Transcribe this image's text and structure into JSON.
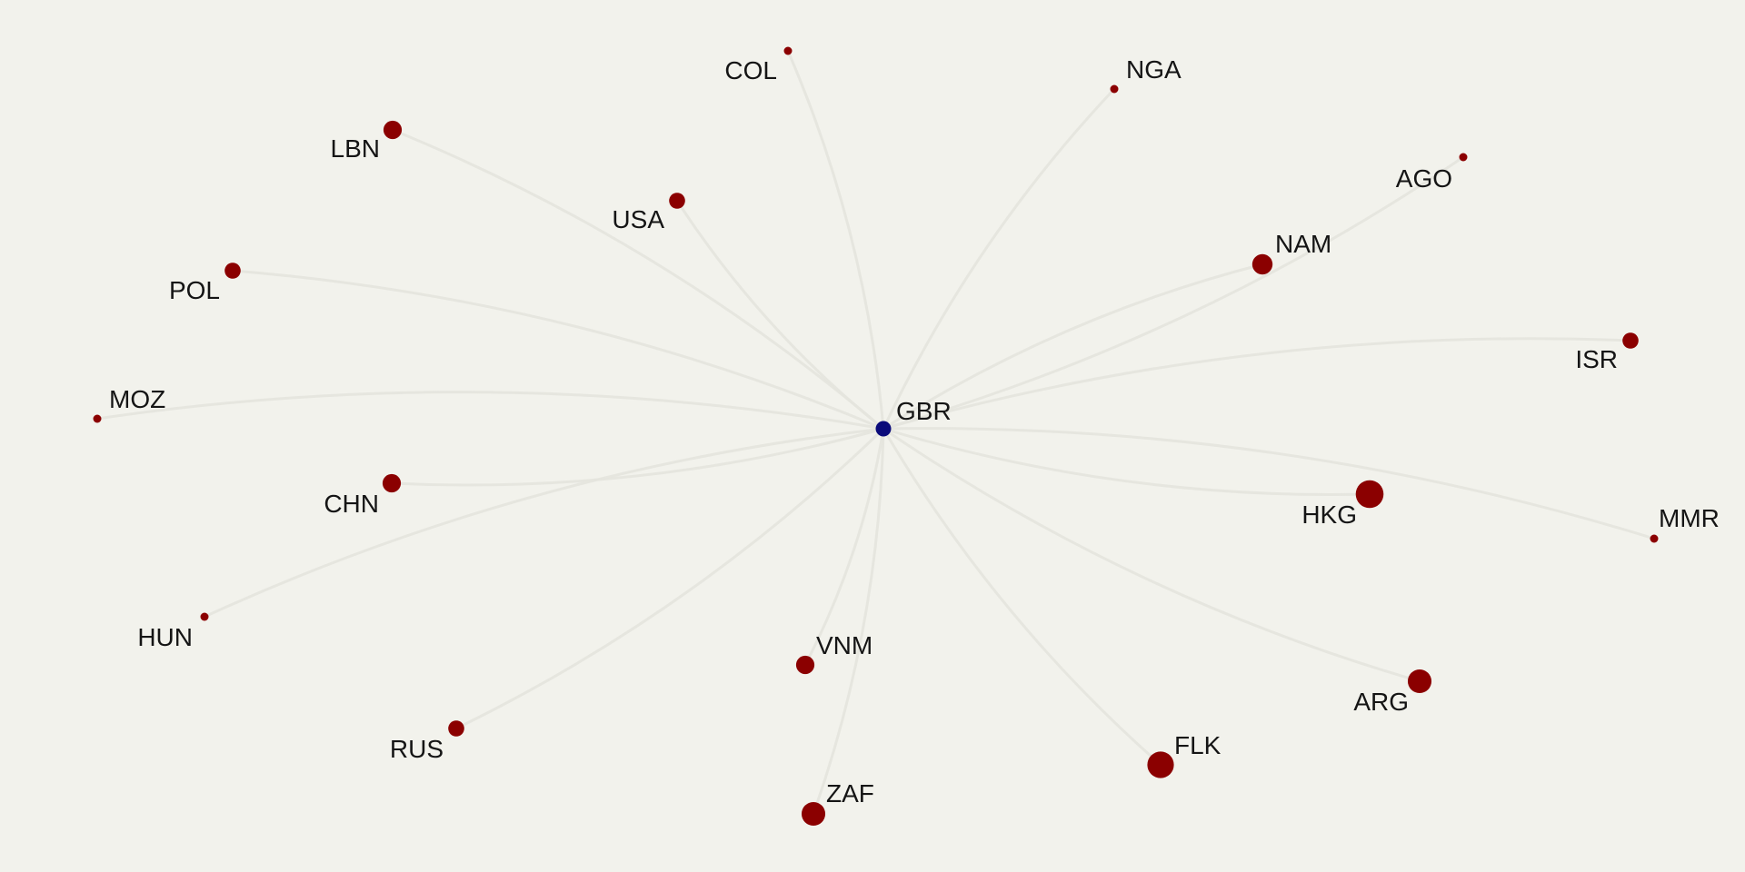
{
  "graph": {
    "colors": {
      "background": "#f2f2ec",
      "edge": "#e4e4de",
      "hub_node": "#0a0a7a",
      "leaf_node": "#8b0000",
      "label": "#151515"
    },
    "hub": "GBR",
    "nodes": [
      {
        "id": "GBR",
        "label": "GBR",
        "role": "hub",
        "weight": 1
      },
      {
        "id": "COL",
        "label": "COL",
        "role": "leaf",
        "weight": 1
      },
      {
        "id": "NGA",
        "label": "NGA",
        "role": "leaf",
        "weight": 1
      },
      {
        "id": "LBN",
        "label": "LBN",
        "role": "leaf",
        "weight": 3
      },
      {
        "id": "USA",
        "label": "USA",
        "role": "leaf",
        "weight": 2
      },
      {
        "id": "AGO",
        "label": "AGO",
        "role": "leaf",
        "weight": 1
      },
      {
        "id": "NAM",
        "label": "NAM",
        "role": "leaf",
        "weight": 4
      },
      {
        "id": "POL",
        "label": "POL",
        "role": "leaf",
        "weight": 2
      },
      {
        "id": "ISR",
        "label": "ISR",
        "role": "leaf",
        "weight": 2
      },
      {
        "id": "MOZ",
        "label": "MOZ",
        "role": "leaf",
        "weight": 1
      },
      {
        "id": "CHN",
        "label": "CHN",
        "role": "leaf",
        "weight": 3
      },
      {
        "id": "HKG",
        "label": "HKG",
        "role": "leaf",
        "weight": 9
      },
      {
        "id": "MMR",
        "label": "MMR",
        "role": "leaf",
        "weight": 1
      },
      {
        "id": "HUN",
        "label": "HUN",
        "role": "leaf",
        "weight": 1
      },
      {
        "id": "VNM",
        "label": "VNM",
        "role": "leaf",
        "weight": 3
      },
      {
        "id": "ARG",
        "label": "ARG",
        "role": "leaf",
        "weight": 6
      },
      {
        "id": "RUS",
        "label": "RUS",
        "role": "leaf",
        "weight": 2
      },
      {
        "id": "FLK",
        "label": "FLK",
        "role": "leaf",
        "weight": 8
      },
      {
        "id": "ZAF",
        "label": "ZAF",
        "role": "leaf",
        "weight": 6
      }
    ],
    "edges": [
      {
        "source": "GBR",
        "target": "COL"
      },
      {
        "source": "GBR",
        "target": "NGA"
      },
      {
        "source": "GBR",
        "target": "LBN"
      },
      {
        "source": "GBR",
        "target": "USA"
      },
      {
        "source": "GBR",
        "target": "AGO"
      },
      {
        "source": "GBR",
        "target": "NAM"
      },
      {
        "source": "GBR",
        "target": "POL"
      },
      {
        "source": "GBR",
        "target": "ISR"
      },
      {
        "source": "GBR",
        "target": "MOZ"
      },
      {
        "source": "GBR",
        "target": "CHN"
      },
      {
        "source": "GBR",
        "target": "HKG"
      },
      {
        "source": "GBR",
        "target": "MMR"
      },
      {
        "source": "GBR",
        "target": "HUN"
      },
      {
        "source": "GBR",
        "target": "VNM"
      },
      {
        "source": "GBR",
        "target": "ARG"
      },
      {
        "source": "GBR",
        "target": "RUS"
      },
      {
        "source": "GBR",
        "target": "FLK"
      },
      {
        "source": "GBR",
        "target": "ZAF"
      }
    ]
  }
}
